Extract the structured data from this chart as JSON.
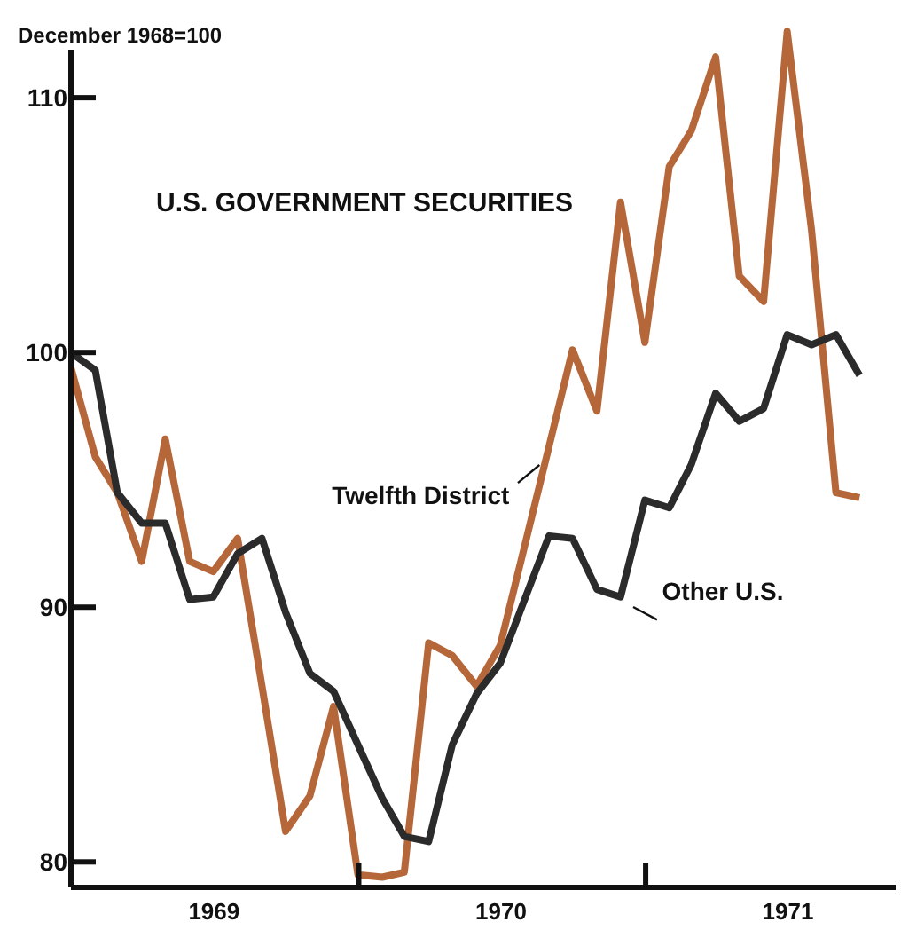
{
  "chart_data": {
    "type": "line",
    "title": "U.S. GOVERNMENT SECURITIES",
    "ylabel": "December 1968=100",
    "xlim": [
      "1968-12-31",
      "1971-11-15"
    ],
    "xticks": [
      {
        "value": "1969-07-01",
        "label": "1969"
      },
      {
        "value": "1970-01-01",
        "label": null
      },
      {
        "value": "1970-07-01",
        "label": "1970"
      },
      {
        "value": "1971-01-01",
        "label": null
      },
      {
        "value": "1971-07-01",
        "label": "1971"
      }
    ],
    "x": [
      "1968-12-31",
      "1969-01-31",
      "1969-02-28",
      "1969-03-31",
      "1969-04-30",
      "1969-05-31",
      "1969-06-30",
      "1969-07-31",
      "1969-08-31",
      "1969-09-30",
      "1969-10-31",
      "1969-11-30",
      "1969-12-31",
      "1970-01-31",
      "1970-02-28",
      "1970-03-31",
      "1970-04-30",
      "1970-05-31",
      "1970-06-30",
      "1970-07-31",
      "1970-08-31",
      "1970-09-30",
      "1970-10-31",
      "1970-11-30",
      "1970-12-31",
      "1971-01-31",
      "1971-02-28",
      "1971-03-31",
      "1971-04-30",
      "1971-05-31",
      "1971-06-30",
      "1971-07-31",
      "1971-08-31",
      "1971-09-30"
    ],
    "ylim": [
      79,
      113
    ],
    "yticks": [
      80,
      90,
      100,
      110
    ],
    "marker": "none",
    "line_style": "solid",
    "legend": false,
    "series": [
      {
        "name": "Twelfth District",
        "color": "#b5673a",
        "values": [
          99.4,
          95.9,
          94.5,
          91.8,
          96.6,
          91.8,
          91.4,
          92.7,
          86.9,
          81.2,
          82.6,
          86.1,
          79.5,
          79.4,
          79.6,
          88.6,
          88.1,
          86.9,
          88.5,
          92.4,
          96.3,
          100.1,
          97.7,
          105.9,
          100.4,
          107.3,
          108.7,
          111.6,
          103.0,
          102.0,
          112.6,
          104.8,
          94.5,
          94.3
        ]
      },
      {
        "name": "Other U.S.",
        "color": "#2b2b2b",
        "values": [
          100,
          99.3,
          94.5,
          93.3,
          93.3,
          90.3,
          90.4,
          92.1,
          92.7,
          89.8,
          87.4,
          86.7,
          84.6,
          82.5,
          81.0,
          80.8,
          84.6,
          86.6,
          87.8,
          90.3,
          92.8,
          92.7,
          90.7,
          90.4,
          94.2,
          93.9,
          95.6,
          98.4,
          97.3,
          97.8,
          100.7,
          100.3,
          100.7,
          99.1
        ]
      }
    ]
  }
}
